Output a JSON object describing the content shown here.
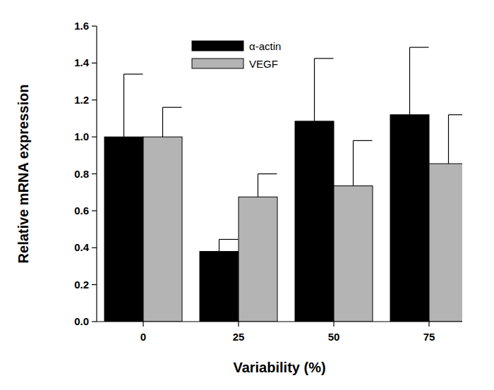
{
  "chart_data": {
    "type": "bar",
    "x_label": "Variability (%)",
    "y_label": "Relative mRNA expression",
    "categories": [
      "0",
      "25",
      "50",
      "75"
    ],
    "series": [
      {
        "name": "α-actin",
        "color": "#000000",
        "values": [
          1.0,
          0.38,
          1.085,
          1.12
        ],
        "errors": [
          0.34,
          0.065,
          0.34,
          0.365
        ]
      },
      {
        "name": "VEGF",
        "color": "#b4b4b4",
        "values": [
          1.0,
          0.675,
          0.735,
          0.855
        ],
        "errors": [
          0.16,
          0.125,
          0.245,
          0.265
        ]
      }
    ],
    "ylim": [
      0,
      1.6
    ],
    "yticks": [
      {
        "value": 0,
        "label": "0.0"
      },
      0.2,
      0.4,
      0.6,
      0.8,
      {
        "value": 1,
        "label": "1.0"
      },
      1.2,
      1.4,
      1.6
    ],
    "grid": false,
    "legend": "top"
  }
}
